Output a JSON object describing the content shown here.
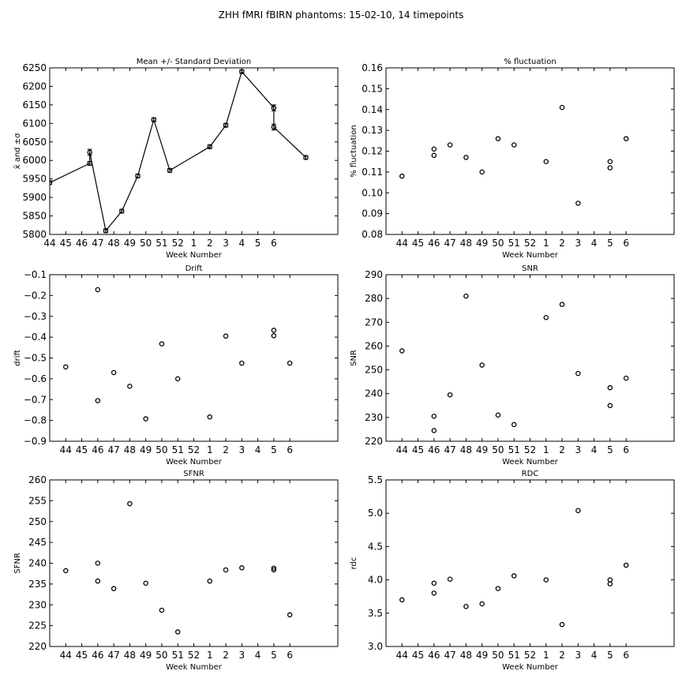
{
  "figure_title": "ZHH fMRI fBIRN phantoms: 15-02-10, 14 timepoints",
  "x_tick_labels": [
    "44",
    "45",
    "46",
    "47",
    "48",
    "49",
    "50",
    "51",
    "52",
    "1",
    "2",
    "3",
    "4",
    "5",
    "6"
  ],
  "chart_data": [
    {
      "type": "line",
      "title": "Mean +/- Standard Deviation",
      "xlabel": "Week Number",
      "ylabel": "x̄ and ±σ",
      "xlim": [
        0,
        18
      ],
      "ylim": [
        5800,
        6250
      ],
      "yticks": [
        5800,
        5850,
        5900,
        5950,
        6000,
        6050,
        6100,
        6150,
        6200,
        6250
      ],
      "ytick_labels": [
        "5800",
        "5850",
        "5900",
        "5950",
        "6000",
        "6050",
        "6100",
        "6150",
        "6200",
        "6250"
      ],
      "connect_points": true,
      "show_errorbars": true,
      "x": [
        0,
        2.5,
        2.5,
        3.5,
        4.5,
        5.5,
        6.5,
        7.5,
        10,
        11,
        12,
        14,
        14,
        16
      ],
      "y": [
        5940,
        5992,
        6022,
        5810,
        5863,
        5958,
        6110,
        5973,
        6037,
        6095,
        6240,
        6142,
        6090,
        6008
      ],
      "err": [
        5,
        5,
        8,
        5,
        5,
        5,
        5,
        5,
        5,
        5,
        5,
        8,
        8,
        5
      ]
    },
    {
      "type": "scatter",
      "title": "% fluctuation",
      "xlabel": "Week Number",
      "ylabel": "% fluctuation",
      "xlim": [
        -1,
        17
      ],
      "ylim": [
        0.08,
        0.16
      ],
      "yticks": [
        0.08,
        0.09,
        0.1,
        0.11,
        0.12,
        0.13,
        0.14,
        0.15,
        0.16
      ],
      "ytick_labels": [
        "0.08",
        "0.09",
        "0.10",
        "0.11",
        "0.12",
        "0.13",
        "0.14",
        "0.15",
        "0.16"
      ],
      "x": [
        0,
        2,
        2,
        3,
        4,
        5,
        6,
        7,
        9,
        10,
        11,
        13,
        13,
        14
      ],
      "y": [
        0.108,
        0.121,
        0.118,
        0.123,
        0.117,
        0.11,
        0.126,
        0.123,
        0.115,
        0.141,
        0.095,
        0.115,
        0.112,
        0.126
      ]
    },
    {
      "type": "scatter",
      "title": "Drift",
      "xlabel": "Week Number",
      "ylabel": "drift",
      "xlim": [
        -1,
        17
      ],
      "ylim": [
        -0.9,
        -0.1
      ],
      "yticks": [
        -0.9,
        -0.8,
        -0.7,
        -0.6,
        -0.5,
        -0.4,
        -0.3,
        -0.2,
        -0.1
      ],
      "ytick_labels": [
        "−0.9",
        "−0.8",
        "−0.7",
        "−0.6",
        "−0.5",
        "−0.4",
        "−0.3",
        "−0.2",
        "−0.1"
      ],
      "x": [
        0,
        2,
        2,
        3,
        4,
        5,
        6,
        7,
        9,
        10,
        11,
        13,
        13,
        14
      ],
      "y": [
        -0.543,
        -0.172,
        -0.705,
        -0.57,
        -0.636,
        -0.792,
        -0.432,
        -0.6,
        -0.783,
        -0.395,
        -0.525,
        -0.367,
        -0.393,
        -0.525
      ]
    },
    {
      "type": "scatter",
      "title": "SNR",
      "xlabel": "Week Number",
      "ylabel": "SNR",
      "xlim": [
        -1,
        17
      ],
      "ylim": [
        220,
        290
      ],
      "yticks": [
        220,
        230,
        240,
        250,
        260,
        270,
        280,
        290
      ],
      "ytick_labels": [
        "220",
        "230",
        "240",
        "250",
        "260",
        "270",
        "280",
        "290"
      ],
      "x": [
        0,
        2,
        2,
        3,
        4,
        5,
        6,
        7,
        9,
        10,
        11,
        13,
        13,
        14
      ],
      "y": [
        258,
        230.5,
        224.5,
        239.5,
        281,
        252,
        231,
        227,
        272,
        277.5,
        248.5,
        242.5,
        235,
        246.5
      ]
    },
    {
      "type": "scatter",
      "title": "SFNR",
      "xlabel": "Week Number",
      "ylabel": "SFNR",
      "xlim": [
        -1,
        17
      ],
      "ylim": [
        220,
        260
      ],
      "yticks": [
        220,
        225,
        230,
        235,
        240,
        245,
        250,
        255,
        260
      ],
      "ytick_labels": [
        "220",
        "225",
        "230",
        "235",
        "240",
        "245",
        "250",
        "255",
        "260"
      ],
      "x": [
        0,
        2,
        2,
        3,
        4,
        5,
        6,
        7,
        9,
        10,
        11,
        13,
        13,
        14
      ],
      "y": [
        238.2,
        240,
        235.7,
        233.9,
        254.3,
        235.2,
        228.7,
        223.5,
        235.7,
        238.4,
        238.9,
        238.8,
        238.4,
        227.6
      ]
    },
    {
      "type": "scatter",
      "title": "RDC",
      "xlabel": "Week Number",
      "ylabel": "rdc",
      "xlim": [
        -1,
        17
      ],
      "ylim": [
        3.0,
        5.5
      ],
      "yticks": [
        3.0,
        3.5,
        4.0,
        4.5,
        5.0,
        5.5
      ],
      "ytick_labels": [
        "3.0",
        "3.5",
        "4.0",
        "4.5",
        "5.0",
        "5.5"
      ],
      "x": [
        0,
        2,
        2,
        3,
        4,
        5,
        6,
        7,
        9,
        10,
        11,
        13,
        13,
        14
      ],
      "y": [
        3.7,
        3.95,
        3.8,
        4.01,
        3.6,
        3.64,
        3.87,
        4.06,
        4.0,
        3.33,
        5.04,
        4.0,
        3.94,
        4.22
      ]
    }
  ]
}
